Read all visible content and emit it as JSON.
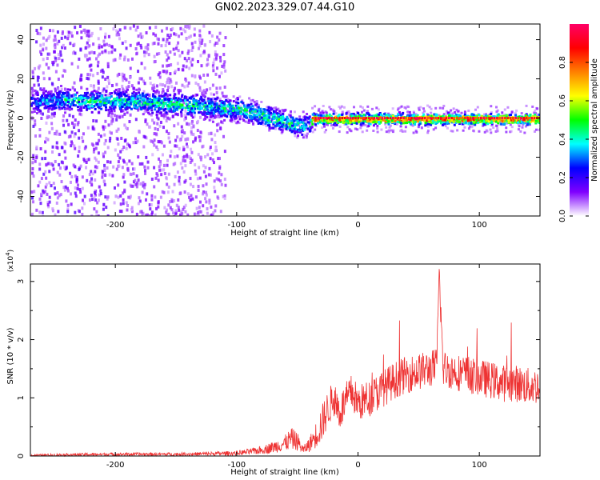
{
  "title": "GN02.2023.329.07.44.G10",
  "chart_data": [
    {
      "type": "heatmap",
      "title": "GN02.2023.329.07.44.G10",
      "xlabel": "Height of straight line (km)",
      "ylabel": "Frequency (Hz)",
      "xlim": [
        -270,
        150
      ],
      "ylim": [
        -50,
        48
      ],
      "x_ticks": [
        -200,
        -100,
        0,
        100
      ],
      "y_ticks": [
        -40,
        -20,
        0,
        20,
        40
      ],
      "grid": false,
      "colorbar": {
        "label": "Normalized spectral amplitude",
        "range": [
          0,
          1
        ],
        "ticks": [
          0.0,
          0.2,
          0.4,
          0.6,
          0.8
        ],
        "colors": [
          "#ffffff",
          "#7f00ff",
          "#0000ff",
          "#00ffff",
          "#00ff00",
          "#ffff00",
          "#ff8000",
          "#ff0000",
          "#ff0066"
        ]
      },
      "dominant_frequency_track": {
        "x": [
          -265,
          -240,
          -220,
          -200,
          -180,
          -160,
          -140,
          -120,
          -100,
          -90,
          -80,
          -70,
          -60,
          -50,
          -40,
          -38,
          -30,
          0,
          50,
          100,
          150
        ],
        "y": [
          9,
          10,
          9,
          9,
          9,
          8,
          7,
          6,
          5,
          4,
          2,
          0,
          -2,
          -3,
          -3,
          0,
          0,
          0,
          0,
          0,
          0
        ],
        "peak_amplitude": [
          0.35,
          0.45,
          0.5,
          0.45,
          0.5,
          0.5,
          0.5,
          0.45,
          0.5,
          0.5,
          0.5,
          0.5,
          0.5,
          0.45,
          0.5,
          0.95,
          0.9,
          0.9,
          0.9,
          0.9,
          0.9
        ]
      }
    },
    {
      "type": "line",
      "xlabel": "Height of straight line (km)",
      "ylabel": "SNR (10 * v/v)",
      "y_multiplier": "(x10^4)",
      "xlim": [
        -270,
        150
      ],
      "ylim": [
        0,
        3.3
      ],
      "x_ticks": [
        -200,
        -100,
        0,
        100
      ],
      "y_ticks": [
        0,
        1,
        2,
        3
      ],
      "grid": false,
      "color": "#ee3333",
      "series": [
        {
          "x": [
            -270,
            -250,
            -200,
            -150,
            -120,
            -100,
            -90,
            -80,
            -70,
            -60,
            -55,
            -50,
            -45,
            -40,
            -35,
            -30,
            -25,
            -20,
            -15,
            -10,
            -5,
            0,
            10,
            20,
            30,
            40,
            50,
            60,
            65,
            67,
            70,
            80,
            90,
            100,
            110,
            120,
            130,
            140,
            150
          ],
          "y": [
            0.01,
            0.02,
            0.03,
            0.03,
            0.04,
            0.05,
            0.07,
            0.1,
            0.15,
            0.22,
            0.3,
            0.25,
            0.1,
            0.2,
            0.35,
            0.55,
            0.8,
            1.0,
            0.75,
            0.95,
            1.1,
            0.9,
            1.0,
            1.15,
            1.3,
            1.4,
            1.45,
            1.5,
            1.55,
            3.2,
            1.5,
            1.45,
            1.4,
            1.35,
            1.3,
            1.25,
            1.25,
            1.2,
            1.2
          ]
        }
      ]
    }
  ]
}
